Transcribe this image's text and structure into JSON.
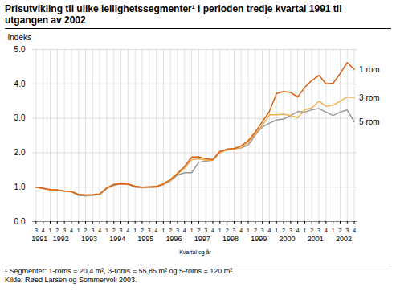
{
  "chart_data": {
    "type": "line",
    "title": "Prisutvikling til ulike leilighetssegmenter¹ i perioden tredje kvartal 1991 til\nutgangen av 2002",
    "xlabel": "Kvartal og år",
    "ylabel": "Indeks",
    "categories": [
      "3",
      "4",
      "1",
      "2",
      "3",
      "4",
      "1",
      "2",
      "3",
      "4",
      "1",
      "2",
      "3",
      "4",
      "1",
      "2",
      "3",
      "4",
      "1",
      "2",
      "3",
      "4",
      "1",
      "2",
      "3",
      "4",
      "1",
      "2",
      "3",
      "4",
      "1",
      "2",
      "3",
      "4",
      "1",
      "2",
      "3",
      "4",
      "1",
      "2",
      "3",
      "4",
      "1",
      "2",
      "3",
      "4"
    ],
    "category_groups": [
      "1991",
      "1991",
      "1992",
      "1992",
      "1992",
      "1992",
      "1993",
      "1993",
      "1993",
      "1993",
      "1994",
      "1994",
      "1994",
      "1994",
      "1995",
      "1995",
      "1995",
      "1995",
      "1996",
      "1996",
      "1996",
      "1996",
      "1997",
      "1997",
      "1997",
      "1997",
      "1998",
      "1998",
      "1998",
      "1998",
      "1999",
      "1999",
      "1999",
      "1999",
      "2000",
      "2000",
      "2000",
      "2000",
      "2001",
      "2001",
      "2001",
      "2001",
      "2002",
      "2002",
      "2002",
      "2002"
    ],
    "series": [
      {
        "name": "1 rom",
        "color": "#D96010",
        "values": [
          1.0,
          0.97,
          0.93,
          0.92,
          0.89,
          0.87,
          0.79,
          0.77,
          0.78,
          0.8,
          0.98,
          1.08,
          1.1,
          1.08,
          1.03,
          1.0,
          1.01,
          1.02,
          1.1,
          1.22,
          1.4,
          1.6,
          1.87,
          1.88,
          1.82,
          1.8,
          2.04,
          2.1,
          2.12,
          2.2,
          2.35,
          2.6,
          2.9,
          3.2,
          3.72,
          3.78,
          3.75,
          3.62,
          3.9,
          4.1,
          4.25,
          4.0,
          4.02,
          4.3,
          4.62,
          4.42
        ]
      },
      {
        "name": "3 rom",
        "color": "#F0AE50",
        "values": [
          1.0,
          0.96,
          0.92,
          0.91,
          0.88,
          0.86,
          0.78,
          0.76,
          0.77,
          0.79,
          0.97,
          1.07,
          1.12,
          1.1,
          1.02,
          1.0,
          1.0,
          1.01,
          1.08,
          1.2,
          1.38,
          1.55,
          1.8,
          1.82,
          1.78,
          1.78,
          2.0,
          2.08,
          2.1,
          2.15,
          2.3,
          2.55,
          2.8,
          3.1,
          3.1,
          3.12,
          3.08,
          3.02,
          3.25,
          3.3,
          3.5,
          3.35,
          3.38,
          3.5,
          3.62,
          3.6
        ]
      },
      {
        "name": "5 rom",
        "color": "#999999",
        "values": [
          1.0,
          0.96,
          0.92,
          0.91,
          0.88,
          0.87,
          0.76,
          0.74,
          0.76,
          0.78,
          0.96,
          1.05,
          1.1,
          1.09,
          1.0,
          0.98,
          0.99,
          1.0,
          1.07,
          1.18,
          1.35,
          1.42,
          1.42,
          1.72,
          1.76,
          1.78,
          2.02,
          2.1,
          2.12,
          2.14,
          2.22,
          2.52,
          2.75,
          2.86,
          2.95,
          2.98,
          3.08,
          3.2,
          3.18,
          3.25,
          3.28,
          3.18,
          3.08,
          3.18,
          3.24,
          2.9
        ]
      }
    ],
    "ylim": [
      0,
      5
    ],
    "yticks": [
      0,
      1,
      2,
      3,
      4,
      5
    ],
    "grid": true,
    "footnotes": [
      "¹ Segmenter: 1-roms = 20,4 m², 3-roms = 55,85 m² og 5-roms = 120 m².",
      "Kilde: Røed Larsen og Sommervoll 2003."
    ]
  }
}
